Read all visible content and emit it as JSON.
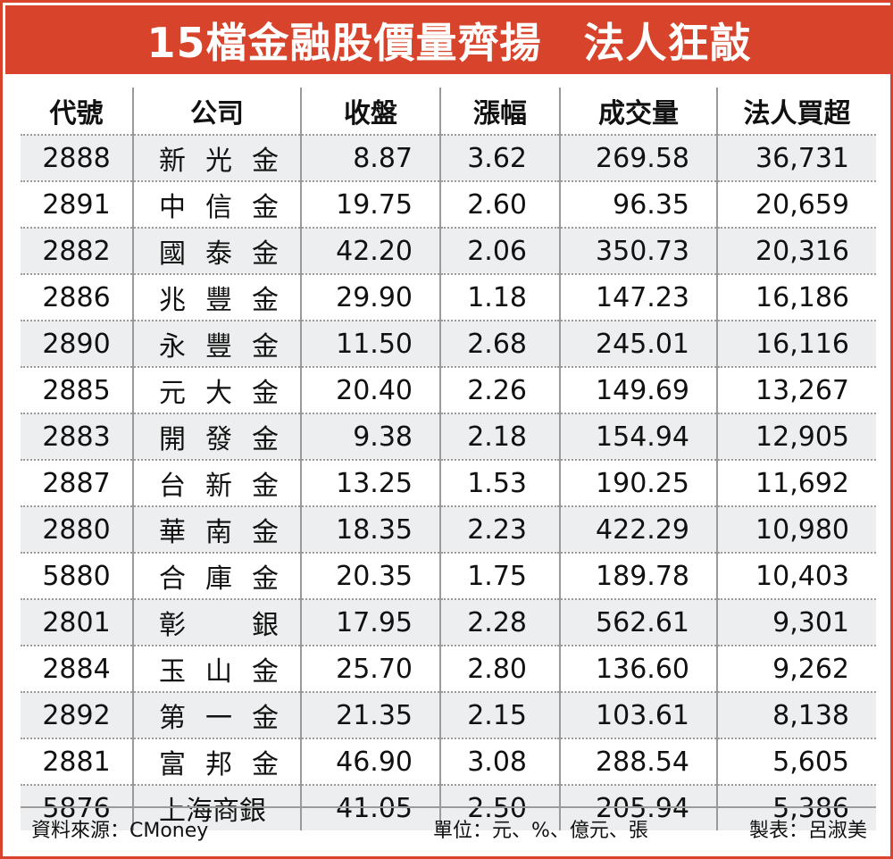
{
  "title": "15檔金融股價量齊揚　法人狂敲",
  "chart_data": {
    "type": "table",
    "title": "15檔金融股價量齊揚　法人狂敲",
    "columns": [
      "代號",
      "公司",
      "收盤",
      "漲幅",
      "成交量",
      "法人買超"
    ],
    "rows": [
      {
        "code": "2888",
        "name": [
          "新",
          "光",
          "金"
        ],
        "close": "8.87",
        "change": "3.62",
        "volume": "269.58",
        "buy": "36,731"
      },
      {
        "code": "2891",
        "name": [
          "中",
          "信",
          "金"
        ],
        "close": "19.75",
        "change": "2.60",
        "volume": "96.35",
        "buy": "20,659"
      },
      {
        "code": "2882",
        "name": [
          "國",
          "泰",
          "金"
        ],
        "close": "42.20",
        "change": "2.06",
        "volume": "350.73",
        "buy": "20,316"
      },
      {
        "code": "2886",
        "name": [
          "兆",
          "豐",
          "金"
        ],
        "close": "29.90",
        "change": "1.18",
        "volume": "147.23",
        "buy": "16,186"
      },
      {
        "code": "2890",
        "name": [
          "永",
          "豐",
          "金"
        ],
        "close": "11.50",
        "change": "2.68",
        "volume": "245.01",
        "buy": "16,116"
      },
      {
        "code": "2885",
        "name": [
          "元",
          "大",
          "金"
        ],
        "close": "20.40",
        "change": "2.26",
        "volume": "149.69",
        "buy": "13,267"
      },
      {
        "code": "2883",
        "name": [
          "開",
          "發",
          "金"
        ],
        "close": "9.38",
        "change": "2.18",
        "volume": "154.94",
        "buy": "12,905"
      },
      {
        "code": "2887",
        "name": [
          "台",
          "新",
          "金"
        ],
        "close": "13.25",
        "change": "1.53",
        "volume": "190.25",
        "buy": "11,692"
      },
      {
        "code": "2880",
        "name": [
          "華",
          "南",
          "金"
        ],
        "close": "18.35",
        "change": "2.23",
        "volume": "422.29",
        "buy": "10,980"
      },
      {
        "code": "5880",
        "name": [
          "合",
          "庫",
          "金"
        ],
        "close": "20.35",
        "change": "1.75",
        "volume": "189.78",
        "buy": "10,403"
      },
      {
        "code": "2801",
        "name": [
          "彰",
          "銀"
        ],
        "close": "17.95",
        "change": "2.28",
        "volume": "562.61",
        "buy": "9,301"
      },
      {
        "code": "2884",
        "name": [
          "玉",
          "山",
          "金"
        ],
        "close": "25.70",
        "change": "2.80",
        "volume": "136.60",
        "buy": "9,262"
      },
      {
        "code": "2892",
        "name": [
          "第",
          "一",
          "金"
        ],
        "close": "21.35",
        "change": "2.15",
        "volume": "103.61",
        "buy": "8,138"
      },
      {
        "code": "2881",
        "name": [
          "富",
          "邦",
          "金"
        ],
        "close": "46.90",
        "change": "3.08",
        "volume": "288.54",
        "buy": "5,605"
      },
      {
        "code": "5876",
        "name": [
          "上海商銀"
        ],
        "close": "41.05",
        "change": "2.50",
        "volume": "205.94",
        "buy": "5,386"
      }
    ]
  },
  "footer": {
    "source": "資料來源：CMoney",
    "unit": "單位：元、%、億元、張",
    "maker": "製表：呂淑美"
  },
  "colors": {
    "accent": "#d8432c",
    "stripe": "#eceeef"
  }
}
